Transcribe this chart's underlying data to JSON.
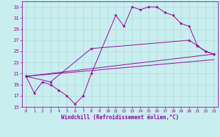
{
  "xlabel": "Windchill (Refroidissement éolien,°C)",
  "bg_color": "#c8eef0",
  "line_color": "#990099",
  "xlim": [
    -0.5,
    23.5
  ],
  "ylim": [
    15,
    34
  ],
  "yticks": [
    15,
    17,
    19,
    21,
    23,
    25,
    27,
    29,
    31,
    33
  ],
  "xticks": [
    0,
    1,
    2,
    3,
    4,
    5,
    6,
    7,
    8,
    9,
    10,
    11,
    12,
    13,
    14,
    15,
    16,
    17,
    18,
    19,
    20,
    21,
    22,
    23
  ],
  "grid_color": "#b0d8d8",
  "curve1_x": [
    0,
    1,
    2,
    3,
    4,
    5,
    6,
    7,
    8,
    11,
    12,
    13,
    14,
    15,
    16,
    17,
    18,
    19,
    20,
    21,
    22,
    23
  ],
  "curve1_y": [
    20.5,
    17.5,
    19.5,
    19.0,
    18.0,
    17.0,
    15.5,
    17.0,
    21.0,
    31.5,
    29.5,
    33.0,
    32.5,
    33.0,
    33.0,
    32.0,
    31.5,
    30.0,
    29.5,
    26.0,
    25.0,
    24.5
  ],
  "curve2_x": [
    0,
    3,
    8,
    20,
    21,
    22,
    23
  ],
  "curve2_y": [
    20.5,
    19.5,
    25.5,
    27.0,
    26.0,
    25.0,
    24.5
  ],
  "curve3_x": [
    0,
    23
  ],
  "curve3_y": [
    20.5,
    24.5
  ],
  "curve4_x": [
    0,
    23
  ],
  "curve4_y": [
    20.5,
    23.5
  ]
}
